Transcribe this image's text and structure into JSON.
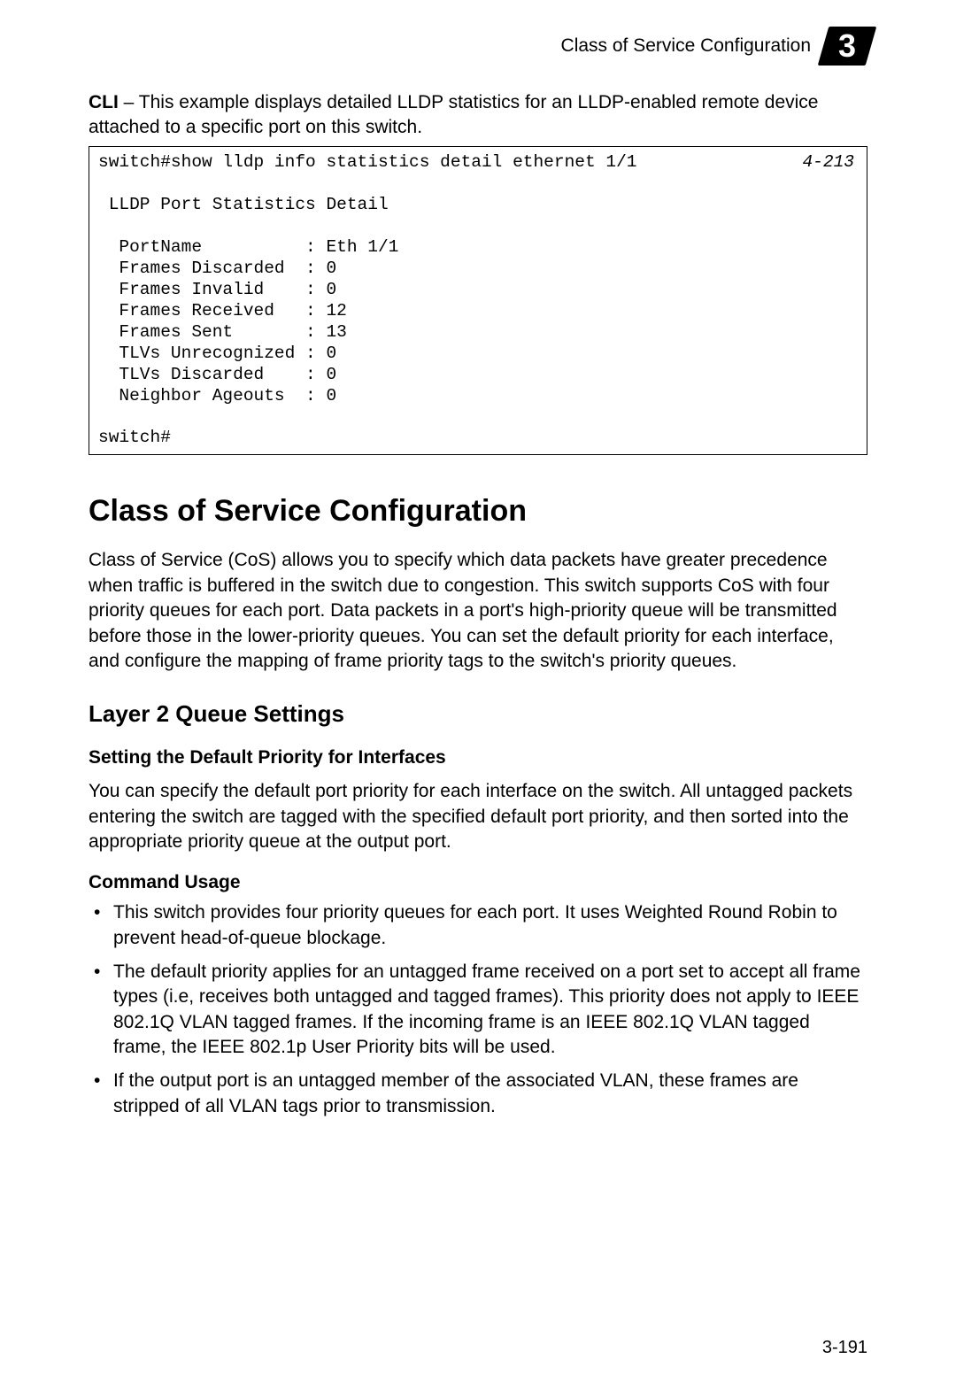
{
  "header": {
    "title": "Class of Service Configuration",
    "chapter_number": "3"
  },
  "intro": {
    "cli_label": "CLI",
    "text": " – This example displays detailed LLDP statistics for an LLDP-enabled remote device attached to a specific port on this switch."
  },
  "cli": {
    "ref": "4-213",
    "content": "switch#show lldp info statistics detail ethernet 1/1\n\n LLDP Port Statistics Detail\n\n  PortName          : Eth 1/1\n  Frames Discarded  : 0\n  Frames Invalid    : 0\n  Frames Received   : 12\n  Frames Sent       : 13\n  TLVs Unrecognized : 0\n  TLVs Discarded    : 0\n  Neighbor Ageouts  : 0\n\nswitch#"
  },
  "section": {
    "title": "Class of Service Configuration",
    "body": "Class of Service (CoS) allows you to specify which data packets have greater precedence when traffic is buffered in the switch due to congestion. This switch supports CoS with four priority queues for each port. Data packets in a port's high-priority queue will be transmitted before those in the lower-priority queues. You can set the default priority for each interface, and configure the mapping of frame priority tags to the switch's priority queues."
  },
  "subsection": {
    "title": "Layer 2 Queue Settings"
  },
  "subsubsection": {
    "title": "Setting the Default Priority for Interfaces",
    "body": "You can specify the default port priority for each interface on the switch. All untagged packets entering the switch are tagged with the specified default port priority, and then sorted into the appropriate priority queue at the output port."
  },
  "command_usage": {
    "title": "Command Usage",
    "bullets": [
      "This switch provides four priority queues for each port. It uses Weighted Round Robin to prevent head-of-queue blockage.",
      "The default priority applies for an untagged frame received on a port set to accept all frame types (i.e, receives both untagged and tagged frames). This priority does not apply to IEEE 802.1Q VLAN tagged frames. If the incoming frame is an IEEE 802.1Q VLAN tagged frame, the IEEE 802.1p User Priority bits will be used.",
      "If the output port is an untagged member of the associated VLAN, these frames are stripped of all VLAN tags prior to transmission."
    ]
  },
  "page_number": "3-191"
}
